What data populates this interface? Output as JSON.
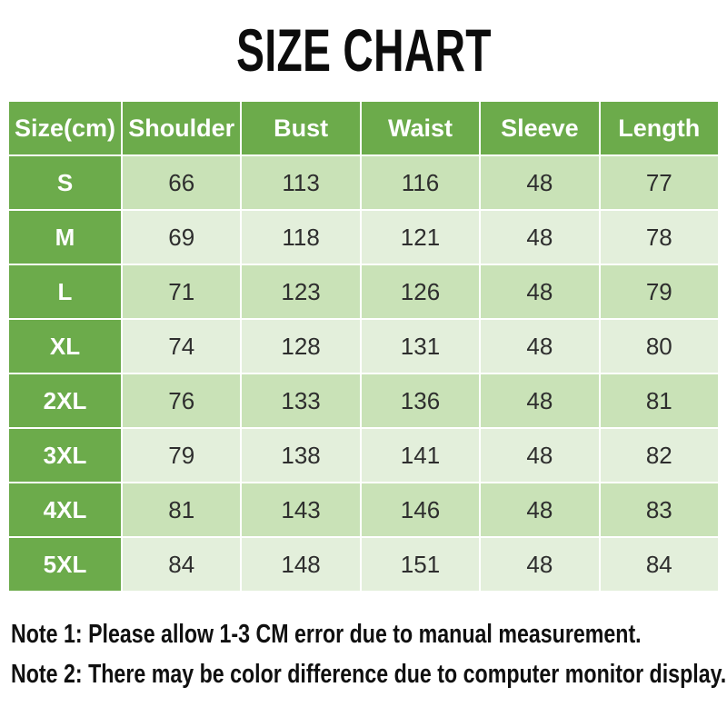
{
  "title": "SIZE CHART",
  "chart_data": {
    "type": "table",
    "title": "SIZE CHART",
    "columns": [
      "Size(cm)",
      "Shoulder",
      "Bust",
      "Waist",
      "Sleeve",
      "Length"
    ],
    "rows": [
      {
        "size": "S",
        "values": [
          "66",
          "113",
          "116",
          "48",
          "77"
        ]
      },
      {
        "size": "M",
        "values": [
          "69",
          "118",
          "121",
          "48",
          "78"
        ]
      },
      {
        "size": "L",
        "values": [
          "71",
          "123",
          "126",
          "48",
          "79"
        ]
      },
      {
        "size": "XL",
        "values": [
          "74",
          "128",
          "131",
          "48",
          "80"
        ]
      },
      {
        "size": "2XL",
        "values": [
          "76",
          "133",
          "136",
          "48",
          "81"
        ]
      },
      {
        "size": "3XL",
        "values": [
          "79",
          "138",
          "141",
          "48",
          "82"
        ]
      },
      {
        "size": "4XL",
        "values": [
          "81",
          "143",
          "146",
          "48",
          "83"
        ]
      },
      {
        "size": "5XL",
        "values": [
          "84",
          "148",
          "151",
          "48",
          "84"
        ]
      }
    ]
  },
  "notes": [
    "Note 1: Please allow 1-3 CM error due to manual measurement.",
    "Note 2: There may be color difference due to computer monitor display."
  ],
  "colors": {
    "header_green": "#6cab4b",
    "row_fill_dark": "#c9e2b7",
    "row_fill_light": "#e3efdb",
    "header_text": "#ffffff",
    "cell_text": "#2e2e2e",
    "title_text": "#0c0c0c"
  }
}
